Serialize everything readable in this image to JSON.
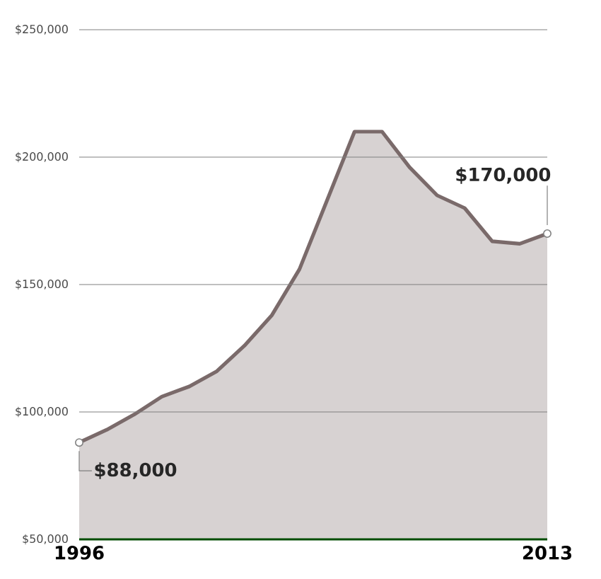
{
  "chart_data": {
    "type": "area",
    "x": [
      1996,
      1997,
      1998,
      1999,
      2000,
      2001,
      2002,
      2003,
      2004,
      2005,
      2006,
      2007,
      2008,
      2009,
      2010,
      2011,
      2012,
      2013
    ],
    "series": [
      {
        "color": "#7a6a6a",
        "values": [
          88000,
          93000,
          99000,
          106000,
          110000,
          116000,
          126000,
          138000,
          156000,
          183000,
          210000,
          210000,
          196000,
          185000,
          180000,
          167000,
          166000,
          170000
        ]
      }
    ],
    "xlim": [
      1996,
      2013
    ],
    "xticks": [
      1996,
      2013
    ],
    "ylim": [
      50000,
      250000
    ],
    "yticks": [
      {
        "value": 50000,
        "label": "$50,000"
      },
      {
        "value": 100000,
        "label": "$100,000"
      },
      {
        "value": 150000,
        "label": "$150,000"
      },
      {
        "value": 200000,
        "label": "$200,000"
      },
      {
        "value": 250000,
        "label": "$250,000"
      }
    ],
    "grid": "y",
    "annotations": [
      {
        "text": "$88,000",
        "x": 1996,
        "y": 88000
      },
      {
        "text": "$170,000",
        "x": 2013,
        "y": 170000
      }
    ]
  }
}
